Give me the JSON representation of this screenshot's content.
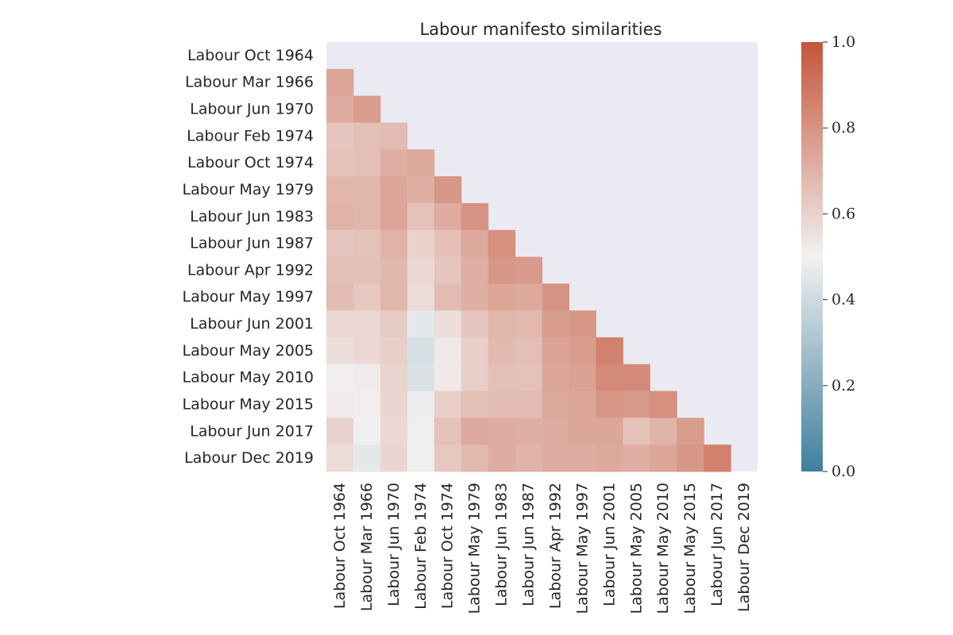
{
  "chart_data": {
    "type": "heatmap",
    "title": "Labour manifesto similarities",
    "xlabel": "",
    "ylabel": "",
    "mask": "upper-triangle-and-diagonal",
    "background_color": "#eaeaf2",
    "labels": [
      "Labour Oct 1964",
      "Labour Mar 1966",
      "Labour Jun 1970",
      "Labour Feb 1974",
      "Labour Oct 1974",
      "Labour May 1979",
      "Labour Jun 1983",
      "Labour Jun 1987",
      "Labour Apr 1992",
      "Labour May 1997",
      "Labour Jun 2001",
      "Labour May 2005",
      "Labour May 2010",
      "Labour May 2015",
      "Labour Jun 2017",
      "Labour Dec 2019"
    ],
    "values": [
      [],
      [
        0.74
      ],
      [
        0.72,
        0.77
      ],
      [
        0.64,
        0.66,
        0.67
      ],
      [
        0.65,
        0.66,
        0.71,
        0.73
      ],
      [
        0.69,
        0.69,
        0.74,
        0.71,
        0.79
      ],
      [
        0.7,
        0.69,
        0.74,
        0.65,
        0.72,
        0.8
      ],
      [
        0.64,
        0.65,
        0.7,
        0.6,
        0.66,
        0.73,
        0.81
      ],
      [
        0.66,
        0.66,
        0.69,
        0.58,
        0.64,
        0.71,
        0.79,
        0.78
      ],
      [
        0.67,
        0.63,
        0.69,
        0.57,
        0.67,
        0.71,
        0.74,
        0.73,
        0.8
      ],
      [
        0.58,
        0.58,
        0.62,
        0.46,
        0.56,
        0.64,
        0.69,
        0.68,
        0.77,
        0.79
      ],
      [
        0.56,
        0.58,
        0.61,
        0.42,
        0.53,
        0.61,
        0.68,
        0.66,
        0.75,
        0.77,
        0.86
      ],
      [
        0.51,
        0.52,
        0.59,
        0.43,
        0.53,
        0.61,
        0.66,
        0.65,
        0.74,
        0.76,
        0.83,
        0.83
      ],
      [
        0.52,
        0.51,
        0.59,
        0.48,
        0.61,
        0.66,
        0.67,
        0.67,
        0.73,
        0.74,
        0.79,
        0.78,
        0.81
      ],
      [
        0.6,
        0.49,
        0.58,
        0.49,
        0.65,
        0.73,
        0.72,
        0.71,
        0.72,
        0.74,
        0.74,
        0.65,
        0.7,
        0.77
      ],
      [
        0.57,
        0.46,
        0.59,
        0.49,
        0.63,
        0.68,
        0.72,
        0.7,
        0.72,
        0.72,
        0.73,
        0.71,
        0.74,
        0.79,
        0.86
      ]
    ],
    "colorbar": {
      "min": 0.0,
      "max": 1.0,
      "ticks": [
        "0.0",
        "0.2",
        "0.4",
        "0.6",
        "0.8",
        "1.0"
      ],
      "colors": [
        "#3f7f9e",
        "#f2f1f1",
        "#c4553a"
      ]
    }
  }
}
